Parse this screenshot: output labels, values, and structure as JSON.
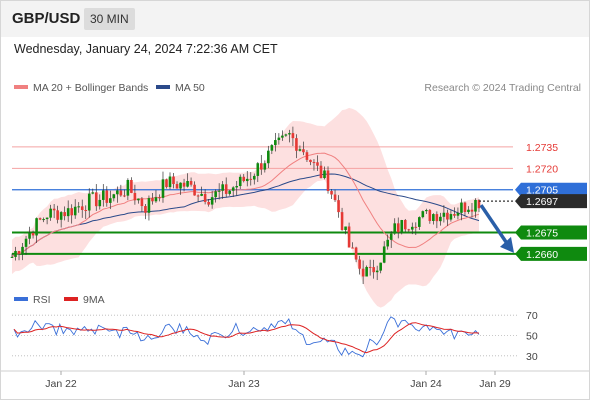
{
  "header": {
    "symbol": "GBP/USD",
    "timeframe": "30 MIN",
    "datetime": "Wednesday, January 24, 2024 7:22:36 AM CET",
    "copyright": "Research © 2024 Trading Central"
  },
  "legend": {
    "ma20_label": "MA 20 + Bollinger Bands",
    "ma20_color": "#f08080",
    "ma50_label": "MA 50",
    "ma50_color": "#2b4a8a",
    "rsi_label": "RSI",
    "rsi_color": "#3a6fd8",
    "ma9_label": "9MA",
    "ma9_color": "#dd2222"
  },
  "chart_data": [
    {
      "type": "candlestick",
      "ylim": [
        1.2634,
        1.277
      ],
      "current_price": "1.2697",
      "levels": [
        {
          "value": 1.2735,
          "label": "1.2735",
          "kind": "resistance",
          "color": "#f4a3a3"
        },
        {
          "value": 1.272,
          "label": "1.2720",
          "kind": "resistance",
          "color": "#f4a3a3"
        },
        {
          "value": 1.2705,
          "label": "1.2705",
          "kind": "pivot",
          "color": "#2f6fd8"
        },
        {
          "value": 1.2675,
          "label": "1.2675",
          "kind": "support",
          "color": "#0f8a0f"
        },
        {
          "value": 1.266,
          "label": "1.2660",
          "kind": "support",
          "color": "#0f8a0f"
        }
      ],
      "forecast": {
        "from": 1.2697,
        "to": 1.266,
        "direction": "down",
        "color": "#2a5fa8"
      },
      "up_color": "#0f8a0f",
      "down_color": "#e53935"
    },
    {
      "type": "line",
      "title": "RSI",
      "ylim": [
        20,
        80
      ],
      "yticks": [
        70,
        50,
        30
      ],
      "series": [
        {
          "name": "RSI"
        },
        {
          "name": "9MA"
        }
      ]
    }
  ],
  "x_axis": {
    "ticks": [
      "Jan 22",
      "Jan 23",
      "Jan 24",
      "Jan 29"
    ]
  }
}
